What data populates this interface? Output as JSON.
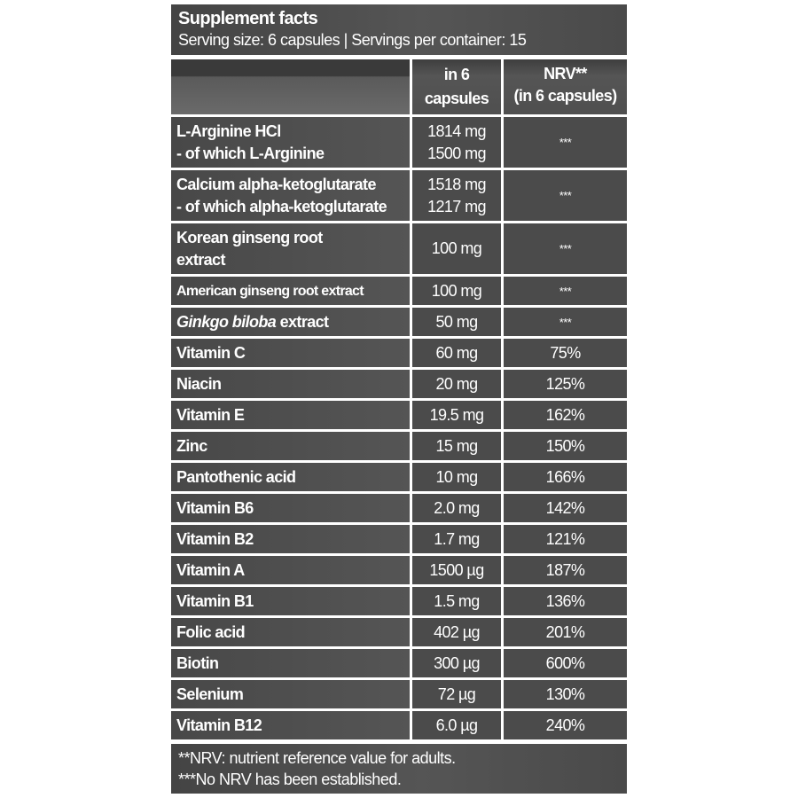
{
  "header": {
    "title": "Supplement facts",
    "serving": "Serving size: 6 capsules | Servings per container: 15"
  },
  "columns": {
    "amount": [
      "in 6",
      "capsules"
    ],
    "nrv": [
      "NRV**",
      "(in 6 capsules)"
    ]
  },
  "rows": [
    {
      "name": [
        "L-Arginine HCl",
        "- of which L-Arginine"
      ],
      "amount": [
        "1814 mg",
        "1500 mg"
      ],
      "nrv": "***"
    },
    {
      "name": [
        "Calcium alpha-ketoglutarate",
        "- of which alpha-ketoglutarate"
      ],
      "amount": [
        "1518 mg",
        "1217 mg"
      ],
      "nrv": "***"
    },
    {
      "name": [
        "Korean ginseng root",
        "extract"
      ],
      "amount": [
        "100 mg"
      ],
      "nrv": "***"
    },
    {
      "name": [
        "American ginseng root extract"
      ],
      "amount": [
        "100 mg"
      ],
      "nrv": "***"
    },
    {
      "name_italic": "Ginkgo biloba",
      "name": [
        " extract"
      ],
      "amount": [
        "50 mg"
      ],
      "nrv": "***"
    },
    {
      "name": [
        "Vitamin C"
      ],
      "amount": [
        "60 mg"
      ],
      "nrv": "75%"
    },
    {
      "name": [
        "Niacin"
      ],
      "amount": [
        "20 mg"
      ],
      "nrv": "125%"
    },
    {
      "name": [
        "Vitamin E"
      ],
      "amount": [
        "19.5 mg"
      ],
      "nrv": "162%"
    },
    {
      "name": [
        "Zinc"
      ],
      "amount": [
        "15 mg"
      ],
      "nrv": "150%"
    },
    {
      "name": [
        "Pantothenic acid"
      ],
      "amount": [
        "10 mg"
      ],
      "nrv": "166%"
    },
    {
      "name": [
        "Vitamin B6"
      ],
      "amount": [
        "2.0 mg"
      ],
      "nrv": "142%"
    },
    {
      "name": [
        "Vitamin B2"
      ],
      "amount": [
        "1.7 mg"
      ],
      "nrv": "121%"
    },
    {
      "name": [
        "Vitamin A"
      ],
      "amount": [
        "1500 µg"
      ],
      "nrv": "187%"
    },
    {
      "name": [
        "Vitamin B1"
      ],
      "amount": [
        "1.5 mg"
      ],
      "nrv": "136%"
    },
    {
      "name": [
        "Folic acid"
      ],
      "amount": [
        "402 µg"
      ],
      "nrv": "201%"
    },
    {
      "name": [
        "Biotin"
      ],
      "amount": [
        "300 µg"
      ],
      "nrv": "600%"
    },
    {
      "name": [
        "Selenium"
      ],
      "amount": [
        "72 µg"
      ],
      "nrv": "130%"
    },
    {
      "name": [
        "Vitamin B12"
      ],
      "amount": [
        "6.0 µg"
      ],
      "nrv": "240%"
    }
  ],
  "footer": {
    "note1": "**NRV: nutrient reference value for adults.",
    "note2": "***No NRV has been established."
  }
}
